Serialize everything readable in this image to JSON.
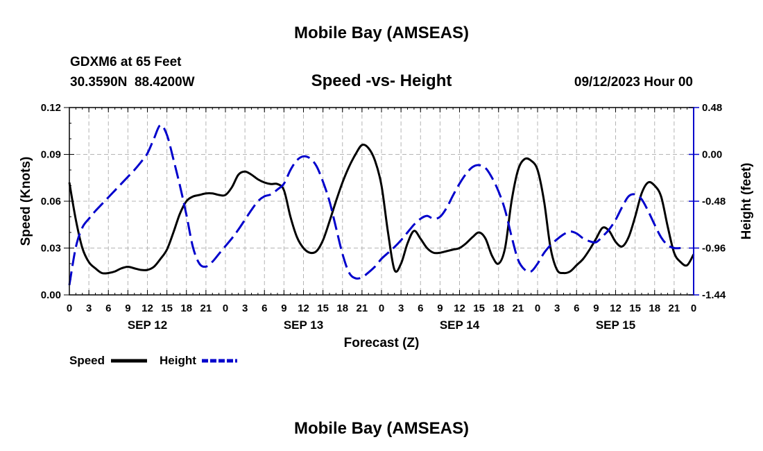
{
  "header": {
    "title": "Mobile Bay (AMSEAS)",
    "station": "GDXM6 at 65 Feet",
    "coordinates": "30.3590N  88.4200W",
    "date": "09/12/2023 Hour 00",
    "footer_title": "Mobile Bay (AMSEAS)"
  },
  "chart_data": {
    "type": "line",
    "title": "Speed -vs- Height",
    "xlabel": "Forecast (Z)",
    "ylabel_left": "Speed (Knots)",
    "ylabel_right": "Height (feet)",
    "x_range_hours": [
      0,
      96
    ],
    "y_left_range": [
      0,
      0.12
    ],
    "y_right_range": [
      -1.44,
      0.48
    ],
    "y_left_ticks": [
      "0.00",
      "0.03",
      "0.06",
      "0.09",
      "0.12"
    ],
    "y_right_ticks": [
      "-1.44",
      "-0.96",
      "-0.48",
      "0.00",
      "0.48"
    ],
    "x_tick_labels": [
      "0",
      "3",
      "6",
      "9",
      "12",
      "15",
      "18",
      "21",
      "0",
      "3",
      "6",
      "9",
      "12",
      "15",
      "18",
      "21",
      "0",
      "3",
      "6",
      "9",
      "12",
      "15",
      "18",
      "21",
      "0",
      "3",
      "6",
      "9",
      "12",
      "15",
      "18",
      "21",
      "0"
    ],
    "day_labels": [
      {
        "label": "SEP 12",
        "hour": 12
      },
      {
        "label": "SEP 13",
        "hour": 36
      },
      {
        "label": "SEP 14",
        "hour": 60
      },
      {
        "label": "SEP 15",
        "hour": 84
      }
    ],
    "grid": true,
    "legend": {
      "placement": "bottom-left",
      "entries": [
        "Speed",
        "Height"
      ]
    },
    "series": [
      {
        "name": "Speed",
        "axis": "left",
        "color": "#000000",
        "style": "solid",
        "points": [
          [
            0,
            0.072
          ],
          [
            1,
            0.048
          ],
          [
            2,
            0.03
          ],
          [
            3,
            0.021
          ],
          [
            4,
            0.017
          ],
          [
            5,
            0.014
          ],
          [
            6,
            0.014
          ],
          [
            7,
            0.015
          ],
          [
            8,
            0.017
          ],
          [
            9,
            0.018
          ],
          [
            10,
            0.017
          ],
          [
            11,
            0.016
          ],
          [
            12,
            0.016
          ],
          [
            13,
            0.018
          ],
          [
            14,
            0.023
          ],
          [
            15,
            0.029
          ],
          [
            16,
            0.04
          ],
          [
            17,
            0.052
          ],
          [
            18,
            0.06
          ],
          [
            19,
            0.063
          ],
          [
            20,
            0.064
          ],
          [
            21,
            0.065
          ],
          [
            22,
            0.065
          ],
          [
            23,
            0.064
          ],
          [
            24,
            0.064
          ],
          [
            25,
            0.069
          ],
          [
            26,
            0.077
          ],
          [
            27,
            0.079
          ],
          [
            28,
            0.077
          ],
          [
            29,
            0.074
          ],
          [
            30,
            0.072
          ],
          [
            31,
            0.071
          ],
          [
            32,
            0.071
          ],
          [
            33,
            0.067
          ],
          [
            34,
            0.05
          ],
          [
            35,
            0.037
          ],
          [
            36,
            0.03
          ],
          [
            37,
            0.027
          ],
          [
            38,
            0.028
          ],
          [
            39,
            0.035
          ],
          [
            40,
            0.047
          ],
          [
            41,
            0.06
          ],
          [
            42,
            0.072
          ],
          [
            43,
            0.082
          ],
          [
            44,
            0.09
          ],
          [
            45,
            0.096
          ],
          [
            46,
            0.094
          ],
          [
            47,
            0.086
          ],
          [
            48,
            0.07
          ],
          [
            49,
            0.04
          ],
          [
            50,
            0.016
          ],
          [
            51,
            0.02
          ],
          [
            52,
            0.033
          ],
          [
            53,
            0.041
          ],
          [
            54,
            0.036
          ],
          [
            55,
            0.03
          ],
          [
            56,
            0.027
          ],
          [
            57,
            0.027
          ],
          [
            58,
            0.028
          ],
          [
            59,
            0.029
          ],
          [
            60,
            0.03
          ],
          [
            61,
            0.033
          ],
          [
            62,
            0.037
          ],
          [
            63,
            0.04
          ],
          [
            64,
            0.036
          ],
          [
            65,
            0.025
          ],
          [
            66,
            0.02
          ],
          [
            67,
            0.03
          ],
          [
            68,
            0.06
          ],
          [
            69,
            0.08
          ],
          [
            70,
            0.087
          ],
          [
            71,
            0.086
          ],
          [
            72,
            0.08
          ],
          [
            73,
            0.06
          ],
          [
            74,
            0.03
          ],
          [
            75,
            0.016
          ],
          [
            76,
            0.014
          ],
          [
            77,
            0.015
          ],
          [
            78,
            0.019
          ],
          [
            79,
            0.023
          ],
          [
            80,
            0.029
          ],
          [
            81,
            0.036
          ],
          [
            82,
            0.043
          ],
          [
            83,
            0.041
          ],
          [
            84,
            0.034
          ],
          [
            85,
            0.031
          ],
          [
            86,
            0.037
          ],
          [
            87,
            0.05
          ],
          [
            88,
            0.065
          ],
          [
            89,
            0.072
          ],
          [
            90,
            0.07
          ],
          [
            91,
            0.063
          ],
          [
            92,
            0.044
          ],
          [
            93,
            0.027
          ],
          [
            94,
            0.021
          ],
          [
            95,
            0.019
          ],
          [
            96,
            0.026
          ]
        ]
      },
      {
        "name": "Height",
        "axis": "right",
        "color": "#0000cc",
        "style": "dashed",
        "points": [
          [
            0,
            -1.34
          ],
          [
            1,
            -0.95
          ],
          [
            2,
            -0.75
          ],
          [
            3,
            -0.66
          ],
          [
            4,
            -0.58
          ],
          [
            5,
            -0.51
          ],
          [
            6,
            -0.44
          ],
          [
            7,
            -0.37
          ],
          [
            8,
            -0.3
          ],
          [
            9,
            -0.23
          ],
          [
            10,
            -0.16
          ],
          [
            11,
            -0.08
          ],
          [
            12,
            0.01
          ],
          [
            13,
            0.16
          ],
          [
            14,
            0.3
          ],
          [
            15,
            0.2
          ],
          [
            16,
            -0.05
          ],
          [
            17,
            -0.32
          ],
          [
            18,
            -0.62
          ],
          [
            19,
            -0.95
          ],
          [
            20,
            -1.12
          ],
          [
            21,
            -1.15
          ],
          [
            22,
            -1.1
          ],
          [
            23,
            -1.02
          ],
          [
            24,
            -0.94
          ],
          [
            25,
            -0.86
          ],
          [
            26,
            -0.77
          ],
          [
            27,
            -0.67
          ],
          [
            28,
            -0.57
          ],
          [
            29,
            -0.48
          ],
          [
            30,
            -0.43
          ],
          [
            31,
            -0.41
          ],
          [
            32,
            -0.36
          ],
          [
            33,
            -0.3
          ],
          [
            34,
            -0.16
          ],
          [
            35,
            -0.06
          ],
          [
            36,
            -0.02
          ],
          [
            37,
            -0.04
          ],
          [
            38,
            -0.12
          ],
          [
            39,
            -0.28
          ],
          [
            40,
            -0.48
          ],
          [
            41,
            -0.75
          ],
          [
            42,
            -1.02
          ],
          [
            43,
            -1.21
          ],
          [
            44,
            -1.27
          ],
          [
            45,
            -1.26
          ],
          [
            46,
            -1.21
          ],
          [
            47,
            -1.15
          ],
          [
            48,
            -1.07
          ],
          [
            49,
            -1.01
          ],
          [
            50,
            -0.95
          ],
          [
            51,
            -0.88
          ],
          [
            52,
            -0.8
          ],
          [
            53,
            -0.72
          ],
          [
            54,
            -0.66
          ],
          [
            55,
            -0.63
          ],
          [
            56,
            -0.66
          ],
          [
            57,
            -0.64
          ],
          [
            58,
            -0.55
          ],
          [
            59,
            -0.42
          ],
          [
            60,
            -0.3
          ],
          [
            61,
            -0.2
          ],
          [
            62,
            -0.13
          ],
          [
            63,
            -0.11
          ],
          [
            64,
            -0.14
          ],
          [
            65,
            -0.24
          ],
          [
            66,
            -0.38
          ],
          [
            67,
            -0.57
          ],
          [
            68,
            -0.84
          ],
          [
            69,
            -1.08
          ],
          [
            70,
            -1.18
          ],
          [
            71,
            -1.2
          ],
          [
            72,
            -1.12
          ],
          [
            73,
            -1.01
          ],
          [
            74,
            -0.93
          ],
          [
            75,
            -0.87
          ],
          [
            76,
            -0.82
          ],
          [
            77,
            -0.79
          ],
          [
            78,
            -0.81
          ],
          [
            79,
            -0.86
          ],
          [
            80,
            -0.89
          ],
          [
            81,
            -0.9
          ],
          [
            82,
            -0.84
          ],
          [
            83,
            -0.77
          ],
          [
            84,
            -0.67
          ],
          [
            85,
            -0.54
          ],
          [
            86,
            -0.43
          ],
          [
            87,
            -0.41
          ],
          [
            88,
            -0.46
          ],
          [
            89,
            -0.58
          ],
          [
            90,
            -0.72
          ],
          [
            91,
            -0.85
          ],
          [
            92,
            -0.93
          ],
          [
            93,
            -0.96
          ],
          [
            94,
            -0.96
          ]
        ]
      }
    ]
  }
}
